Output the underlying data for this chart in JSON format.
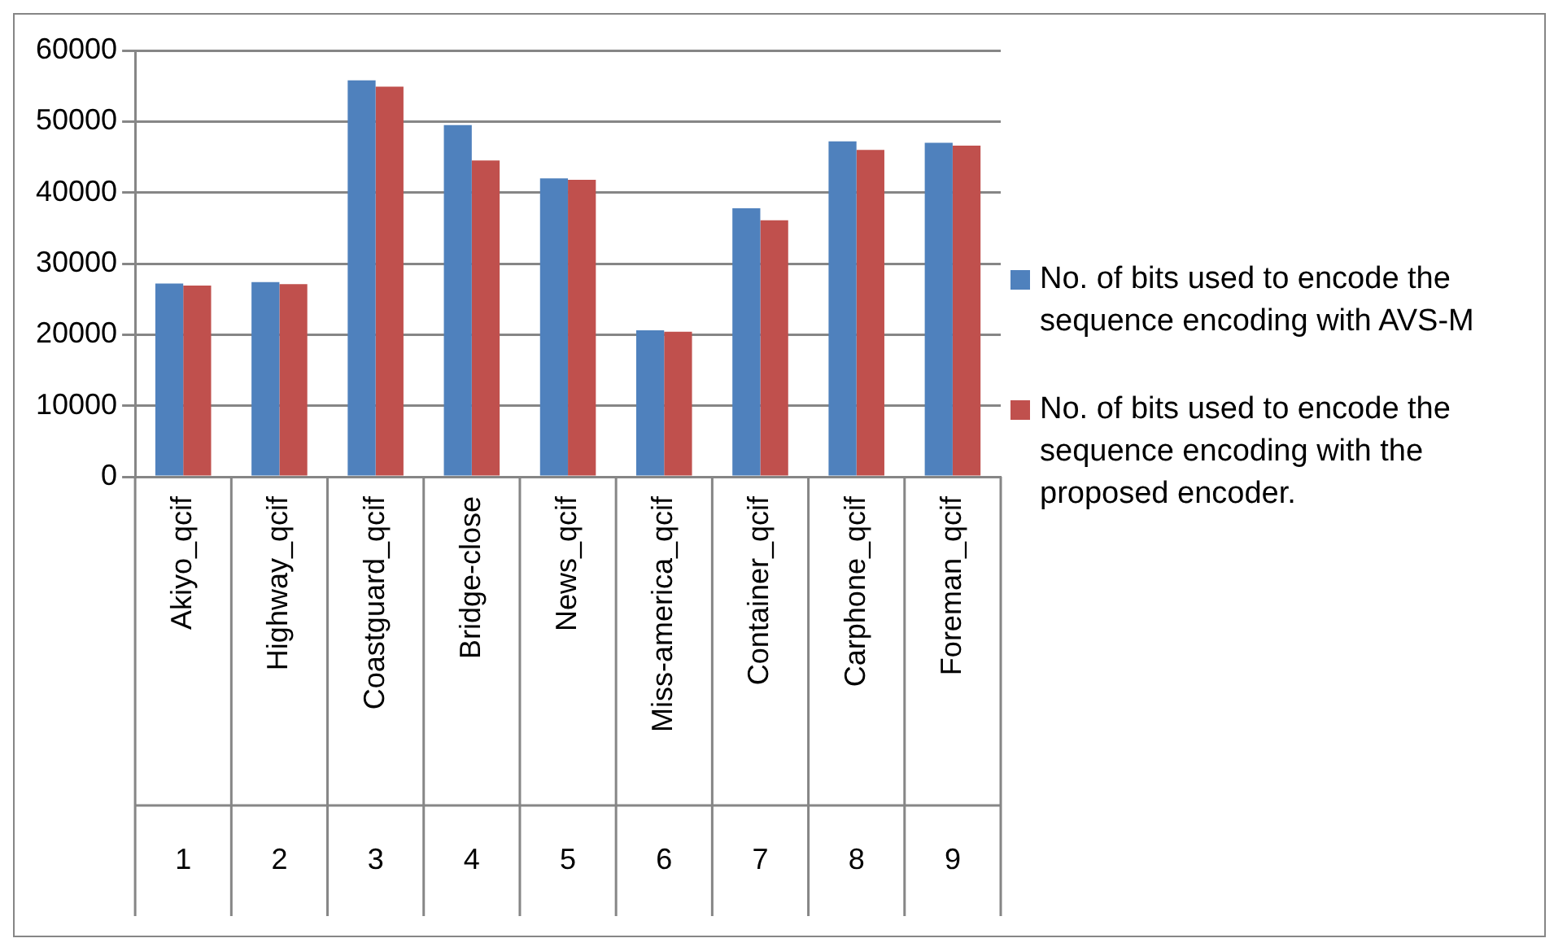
{
  "chart_data": {
    "type": "bar",
    "categories": [
      "Akiyo_qcif",
      "Highway_qcif",
      "Coastguard_qcif",
      "Bridge-close",
      "News_qcif",
      "Miss-america_qcif",
      "Container_qcif",
      "Carphone_qcif",
      "Foreman_qcif"
    ],
    "series": [
      {
        "name": "No. of bits used to encode the sequence encoding with AVS-M",
        "color": "#4f81bd",
        "values": [
          27200,
          27400,
          55800,
          49500,
          42000,
          20600,
          37800,
          47200,
          47000
        ]
      },
      {
        "name": "No. of bits used to encode the sequence encoding with the proposed encoder.",
        "color": "#c0504d",
        "values": [
          26900,
          27100,
          54900,
          44500,
          41800,
          20400,
          36100,
          46000,
          46600
        ]
      }
    ],
    "ylim": [
      0,
      60000
    ],
    "yticks": [
      0,
      10000,
      20000,
      30000,
      40000,
      50000,
      60000
    ],
    "grid": "y",
    "legend": "right",
    "annotations": [
      "1",
      "2",
      "3",
      "4",
      "5",
      "6",
      "7",
      "8",
      "9"
    ]
  }
}
